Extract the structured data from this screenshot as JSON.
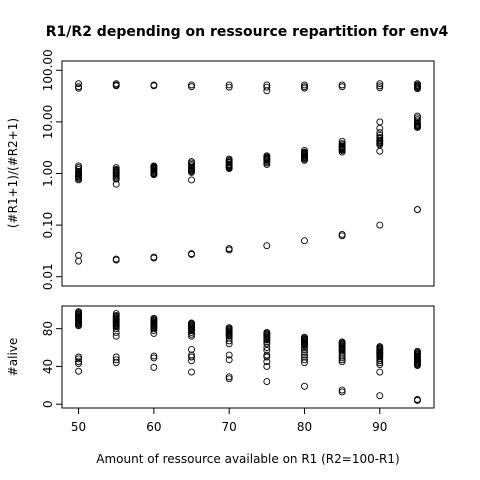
{
  "chart_data": [
    {
      "type": "scatter",
      "title": "R1/R2 depending on ressource repartition for env4",
      "ylabel": "(#R1+1)/(#R2+1)",
      "xlabel": "",
      "log_y": true,
      "ylim": [
        0.01,
        100
      ],
      "xlim": [
        47.8,
        97.2
      ],
      "y_tick_labels": [
        "0.01",
        "0.10",
        "1.00",
        "10.00",
        "100.00"
      ],
      "point_style": "open-circle",
      "series": [
        {
          "x": [
            50,
            50,
            50,
            50,
            50,
            50,
            50,
            50,
            50,
            50,
            50,
            50,
            50,
            50,
            50,
            50,
            50,
            50
          ],
          "y": [
            55,
            48,
            45,
            1.4,
            1.3,
            1.2,
            1.1,
            1.05,
            1.0,
            0.98,
            0.95,
            0.9,
            0.88,
            0.85,
            0.8,
            0.75,
            0.026,
            0.02
          ]
        },
        {
          "x": [
            55,
            55,
            55,
            55,
            55,
            55,
            55,
            55,
            55,
            55,
            55,
            55,
            55,
            55,
            55,
            55,
            55
          ],
          "y": [
            55,
            52,
            50,
            1.3,
            1.2,
            1.15,
            1.1,
            1.05,
            1.0,
            0.95,
            0.9,
            0.85,
            0.8,
            0.78,
            0.62,
            0.022,
            0.021
          ]
        },
        {
          "x": [
            60,
            60,
            60,
            60,
            60,
            60,
            60,
            60,
            60,
            60,
            60,
            60,
            60,
            60,
            60,
            60
          ],
          "y": [
            52,
            50,
            1.4,
            1.3,
            1.25,
            1.2,
            1.15,
            1.1,
            1.05,
            1.0,
            0.98,
            0.95,
            1.35,
            1.28,
            0.023,
            0.024
          ]
        },
        {
          "x": [
            65,
            65,
            65,
            65,
            65,
            65,
            65,
            65,
            65,
            65,
            65,
            65,
            65,
            65,
            65
          ],
          "y": [
            52,
            48,
            1.7,
            1.6,
            1.5,
            1.4,
            1.3,
            1.25,
            1.2,
            1.15,
            1.1,
            1.05,
            0.75,
            0.028,
            0.027
          ]
        },
        {
          "x": [
            70,
            70,
            70,
            70,
            70,
            70,
            70,
            70,
            70,
            70,
            70,
            70,
            70,
            70,
            70
          ],
          "y": [
            52,
            47,
            1.9,
            1.8,
            1.7,
            1.65,
            1.6,
            1.5,
            1.45,
            1.4,
            1.35,
            1.3,
            1.25,
            0.035,
            0.033
          ]
        },
        {
          "x": [
            75,
            75,
            75,
            75,
            75,
            75,
            75,
            75,
            75,
            75,
            75,
            75,
            75,
            75
          ],
          "y": [
            52,
            47,
            40,
            2.2,
            2.1,
            2.0,
            1.95,
            1.9,
            1.85,
            1.8,
            1.7,
            1.6,
            1.5,
            0.04
          ]
        },
        {
          "x": [
            80,
            80,
            80,
            80,
            80,
            80,
            80,
            80,
            80,
            80,
            80,
            80,
            80,
            80,
            80
          ],
          "y": [
            52,
            48,
            45,
            2.8,
            2.6,
            2.5,
            2.4,
            2.3,
            2.2,
            2.1,
            2.05,
            2.0,
            1.9,
            1.8,
            0.05
          ]
        },
        {
          "x": [
            85,
            85,
            85,
            85,
            85,
            85,
            85,
            85,
            85,
            85,
            85,
            85,
            85,
            85,
            85
          ],
          "y": [
            52,
            48,
            4.2,
            3.8,
            3.6,
            3.4,
            3.3,
            3.2,
            3.1,
            3.0,
            2.9,
            2.8,
            2.6,
            0.066,
            0.062
          ]
        },
        {
          "x": [
            90,
            90,
            90,
            90,
            90,
            90,
            90,
            90,
            90,
            90,
            90,
            90,
            90,
            90,
            90,
            90
          ],
          "y": [
            55,
            50,
            46,
            10.0,
            7.5,
            6.2,
            5.5,
            5.0,
            4.7,
            4.4,
            4.2,
            4.0,
            3.8,
            3.6,
            2.7,
            0.1
          ]
        },
        {
          "x": [
            95,
            95,
            95,
            95,
            95,
            95,
            95,
            95,
            95,
            95,
            95,
            95,
            95,
            95,
            95,
            95,
            95,
            95
          ],
          "y": [
            55,
            52,
            50,
            48,
            46,
            44,
            13,
            12,
            11,
            10,
            9.5,
            9.0,
            8.6,
            8.3,
            8.0,
            7.8,
            0.2,
            0.2
          ]
        }
      ]
    },
    {
      "type": "scatter",
      "title": "",
      "ylabel": "#alive",
      "xlabel": "Amount of ressource available on R1 (R2=100-R1)",
      "ylim": [
        0,
        100
      ],
      "xlim": [
        47.8,
        97.2
      ],
      "y_ticks": [
        0,
        40,
        80
      ],
      "x_ticks": [
        50,
        60,
        70,
        80,
        90
      ],
      "point_style": "open-circle",
      "series": [
        {
          "x": [
            50,
            50,
            50,
            50,
            50,
            50,
            50,
            50,
            50,
            50,
            50,
            50,
            50,
            50,
            50,
            50,
            50,
            50,
            50,
            50,
            50
          ],
          "y": [
            98,
            97,
            96,
            95,
            94,
            93,
            92,
            91,
            90,
            89,
            88,
            87,
            86,
            85,
            84,
            83,
            50,
            48,
            45,
            43,
            35
          ]
        },
        {
          "x": [
            55,
            55,
            55,
            55,
            55,
            55,
            55,
            55,
            55,
            55,
            55,
            55,
            55,
            55,
            55,
            55,
            55,
            55,
            55,
            55
          ],
          "y": [
            96,
            94,
            93,
            92,
            91,
            90,
            89,
            88,
            87,
            86,
            85,
            84,
            83,
            82,
            80,
            76,
            72,
            50,
            47,
            44
          ]
        },
        {
          "x": [
            60,
            60,
            60,
            60,
            60,
            60,
            60,
            60,
            60,
            60,
            60,
            60,
            60,
            60,
            60,
            60,
            60
          ],
          "y": [
            91,
            90,
            89,
            88,
            87,
            86,
            85,
            84,
            83,
            82,
            81,
            80,
            78,
            75,
            51,
            49,
            39
          ]
        },
        {
          "x": [
            65,
            65,
            65,
            65,
            65,
            65,
            65,
            65,
            65,
            65,
            65,
            65,
            65,
            65,
            65,
            65,
            65
          ],
          "y": [
            86,
            85,
            84,
            83,
            82,
            81,
            80,
            79,
            78,
            76,
            74,
            72,
            58,
            52,
            50,
            46,
            34
          ]
        },
        {
          "x": [
            70,
            70,
            70,
            70,
            70,
            70,
            70,
            70,
            70,
            70,
            70,
            70,
            70,
            70,
            70,
            70,
            70
          ],
          "y": [
            81,
            80,
            79,
            78,
            77,
            76,
            75,
            74,
            73,
            72,
            70,
            67,
            64,
            52,
            47,
            29,
            27
          ]
        },
        {
          "x": [
            75,
            75,
            75,
            75,
            75,
            75,
            75,
            75,
            75,
            75,
            75,
            75,
            75,
            75,
            75,
            75,
            75,
            75
          ],
          "y": [
            76,
            75,
            74,
            73,
            72,
            71,
            70,
            69,
            68,
            66,
            64,
            60,
            57,
            52,
            50,
            45,
            40,
            24
          ]
        },
        {
          "x": [
            80,
            80,
            80,
            80,
            80,
            80,
            80,
            80,
            80,
            80,
            80,
            80,
            80,
            80,
            80,
            80,
            80,
            80
          ],
          "y": [
            71,
            70,
            69,
            68,
            67,
            66,
            65,
            64,
            63,
            62,
            60,
            58,
            55,
            52,
            50,
            47,
            44,
            19
          ]
        },
        {
          "x": [
            85,
            85,
            85,
            85,
            85,
            85,
            85,
            85,
            85,
            85,
            85,
            85,
            85,
            85,
            85,
            85,
            85,
            85
          ],
          "y": [
            66,
            65,
            64,
            63,
            62,
            61,
            60,
            59,
            58,
            57,
            55,
            53,
            51,
            49,
            47,
            45,
            15,
            13
          ]
        },
        {
          "x": [
            90,
            90,
            90,
            90,
            90,
            90,
            90,
            90,
            90,
            90,
            90,
            90,
            90,
            90,
            90,
            90,
            90,
            90
          ],
          "y": [
            61,
            60,
            59,
            58,
            57,
            56,
            55,
            54,
            53,
            52,
            51,
            50,
            48,
            46,
            44,
            42,
            34,
            9
          ]
        },
        {
          "x": [
            95,
            95,
            95,
            95,
            95,
            95,
            95,
            95,
            95,
            95,
            95,
            95,
            95,
            95,
            95,
            95,
            95,
            95
          ],
          "y": [
            56,
            55,
            54,
            53,
            52,
            51,
            50,
            49,
            48,
            47,
            46,
            45,
            44,
            43,
            42,
            41,
            5,
            4
          ]
        }
      ]
    }
  ]
}
